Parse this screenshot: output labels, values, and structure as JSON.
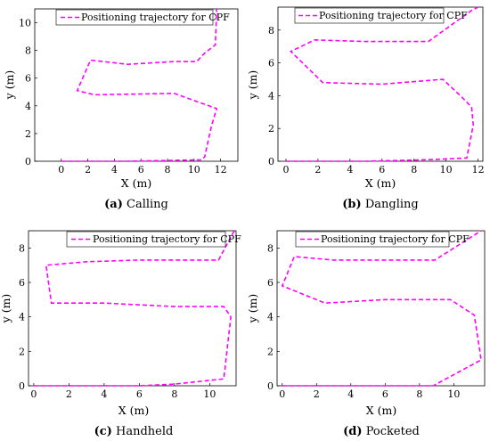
{
  "chart_data": [
    {
      "type": "line",
      "caption_letter": "(a)",
      "caption_text": "Calling",
      "xlabel": "X (m)",
      "ylabel": "y (m)",
      "xlim": [
        -2,
        13.3
      ],
      "ylim": [
        0,
        11
      ],
      "xticks": [
        0,
        2,
        4,
        6,
        8,
        10,
        12
      ],
      "yticks": [
        0,
        2,
        4,
        6,
        8,
        10
      ],
      "legend": "top",
      "series": [
        {
          "name": "Positioning trajectory for CPF",
          "color": "#ff00ff",
          "x": [
            0,
            5,
            10.5,
            10.8,
            11.3,
            11.7,
            8.5,
            2.5,
            1.2,
            2.2,
            5.0,
            8.5,
            10.2,
            10.8,
            11.6,
            11.7
          ],
          "y": [
            0,
            0.0,
            0.1,
            0.3,
            2.5,
            3.8,
            4.9,
            4.8,
            5.1,
            7.3,
            7.0,
            7.2,
            7.2,
            7.8,
            8.4,
            11.0
          ]
        }
      ]
    },
    {
      "type": "line",
      "caption_letter": "(b)",
      "caption_text": "Dangling",
      "xlabel": "X (m)",
      "ylabel": "y (m)",
      "xlim": [
        -0.5,
        12.3
      ],
      "ylim": [
        0,
        9.4
      ],
      "xticks": [
        0,
        2,
        4,
        6,
        8,
        10,
        12
      ],
      "yticks": [
        0,
        2,
        4,
        6,
        8
      ],
      "legend": "top",
      "series": [
        {
          "name": "Positioning trajectory for CPF",
          "color": "#ff00ff",
          "x": [
            0,
            5,
            9,
            11.3,
            11.7,
            11.6,
            11.0,
            9.8,
            6.0,
            2.3,
            0.3,
            1.8,
            5.0,
            8.9,
            11.6,
            12.0
          ],
          "y": [
            0,
            0.0,
            0.1,
            0.2,
            2.2,
            3.3,
            3.9,
            5.0,
            4.7,
            4.8,
            6.7,
            7.4,
            7.3,
            7.3,
            9.2,
            9.4
          ]
        }
      ]
    },
    {
      "type": "line",
      "caption_letter": "(c)",
      "caption_text": "Handheld",
      "xlabel": "X (m)",
      "ylabel": "y (m)",
      "xlim": [
        -0.3,
        11.5
      ],
      "ylim": [
        0,
        9
      ],
      "xticks": [
        0,
        2,
        4,
        6,
        8,
        10
      ],
      "yticks": [
        0,
        2,
        4,
        6,
        8
      ],
      "legend": "top",
      "series": [
        {
          "name": "Positioning trajectory for CPF",
          "color": "#ff00ff",
          "x": [
            0,
            6,
            8.0,
            10.8,
            11.2,
            10.8,
            8.0,
            4.0,
            1.0,
            0.7,
            3.0,
            6.0,
            10.5,
            11.4
          ],
          "y": [
            0,
            0.0,
            0.1,
            0.4,
            4.0,
            4.6,
            4.6,
            4.8,
            4.8,
            7.0,
            7.2,
            7.3,
            7.3,
            9.0
          ]
        }
      ]
    },
    {
      "type": "line",
      "caption_letter": "(d)",
      "caption_text": "Pocketed",
      "xlabel": "X (m)",
      "ylabel": "y (m)",
      "xlim": [
        -0.3,
        11.8
      ],
      "ylim": [
        0,
        9
      ],
      "xticks": [
        0,
        2,
        4,
        6,
        8,
        10
      ],
      "yticks": [
        0,
        2,
        4,
        6,
        8
      ],
      "legend": "top",
      "series": [
        {
          "name": "Positioning trajectory for CPF",
          "color": "#ff00ff",
          "x": [
            0,
            5,
            8.8,
            11.6,
            11.2,
            9.8,
            6.0,
            2.5,
            0,
            0.7,
            3.0,
            6.0,
            8.9,
            11.6
          ],
          "y": [
            0,
            0.0,
            0.0,
            1.5,
            4.1,
            5.0,
            5.0,
            4.8,
            5.8,
            7.5,
            7.3,
            7.3,
            7.3,
            9.0
          ]
        }
      ]
    }
  ]
}
